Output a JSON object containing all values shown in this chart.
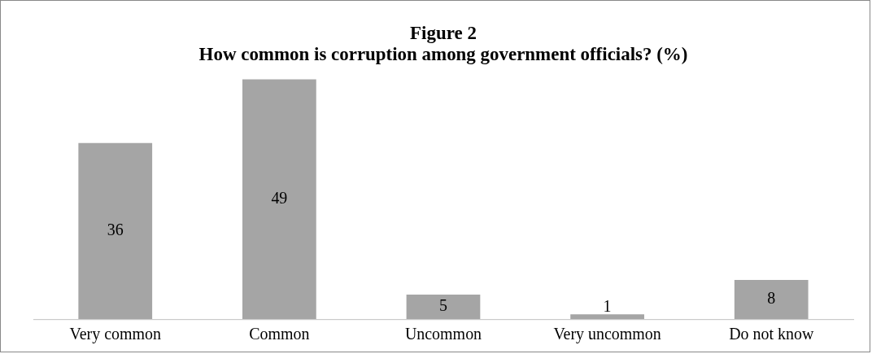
{
  "chart_data": {
    "type": "bar",
    "title": "Figure 2\nHow common is corruption among government officials? (%)",
    "categories": [
      "Very common",
      "Common",
      "Uncommon",
      "Very uncommon",
      "Do not know"
    ],
    "values": [
      36,
      49,
      5,
      1,
      8
    ],
    "color": "#a5a5a5",
    "data_labels": true,
    "grid": false,
    "legend": false
  }
}
